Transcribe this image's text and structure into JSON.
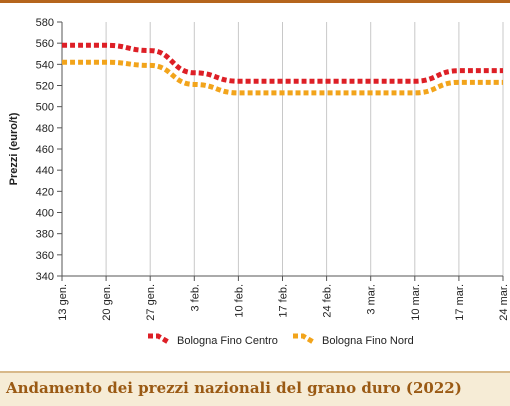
{
  "caption": "Andamento dei prezzi nazionali del grano duro (2022)",
  "colors": {
    "accent": "#b5651d",
    "caption_text": "#9a5a14",
    "caption_bg": "#f6ecd6",
    "grid": "#c8c8c8",
    "series_1": "#dd1f26",
    "series_2": "#f2a41b"
  },
  "chart_data": {
    "type": "line",
    "title": "",
    "xlabel": "",
    "ylabel": "Prezzi (euro/t)",
    "ylim": [
      340,
      580
    ],
    "yticks": [
      340,
      360,
      380,
      400,
      420,
      440,
      460,
      480,
      500,
      520,
      540,
      560,
      580
    ],
    "grid": "vertical",
    "legend": "bottom-center",
    "categories": [
      "13 gen.",
      "20 gen.",
      "27 gen.",
      "3 feb.",
      "10 feb.",
      "17 feb.",
      "24 feb.",
      "3 mar.",
      "10 mar.",
      "17 mar.",
      "24 mar."
    ],
    "series": [
      {
        "name": "Bologna Fino Centro",
        "color": "#dd1f26",
        "values": [
          558,
          558,
          553,
          532,
          524,
          524,
          524,
          524,
          524,
          534,
          534
        ]
      },
      {
        "name": "Bologna Fino Nord",
        "color": "#f2a41b",
        "values": [
          542,
          542,
          539,
          521,
          513,
          513,
          513,
          513,
          513,
          523,
          523
        ]
      }
    ]
  }
}
